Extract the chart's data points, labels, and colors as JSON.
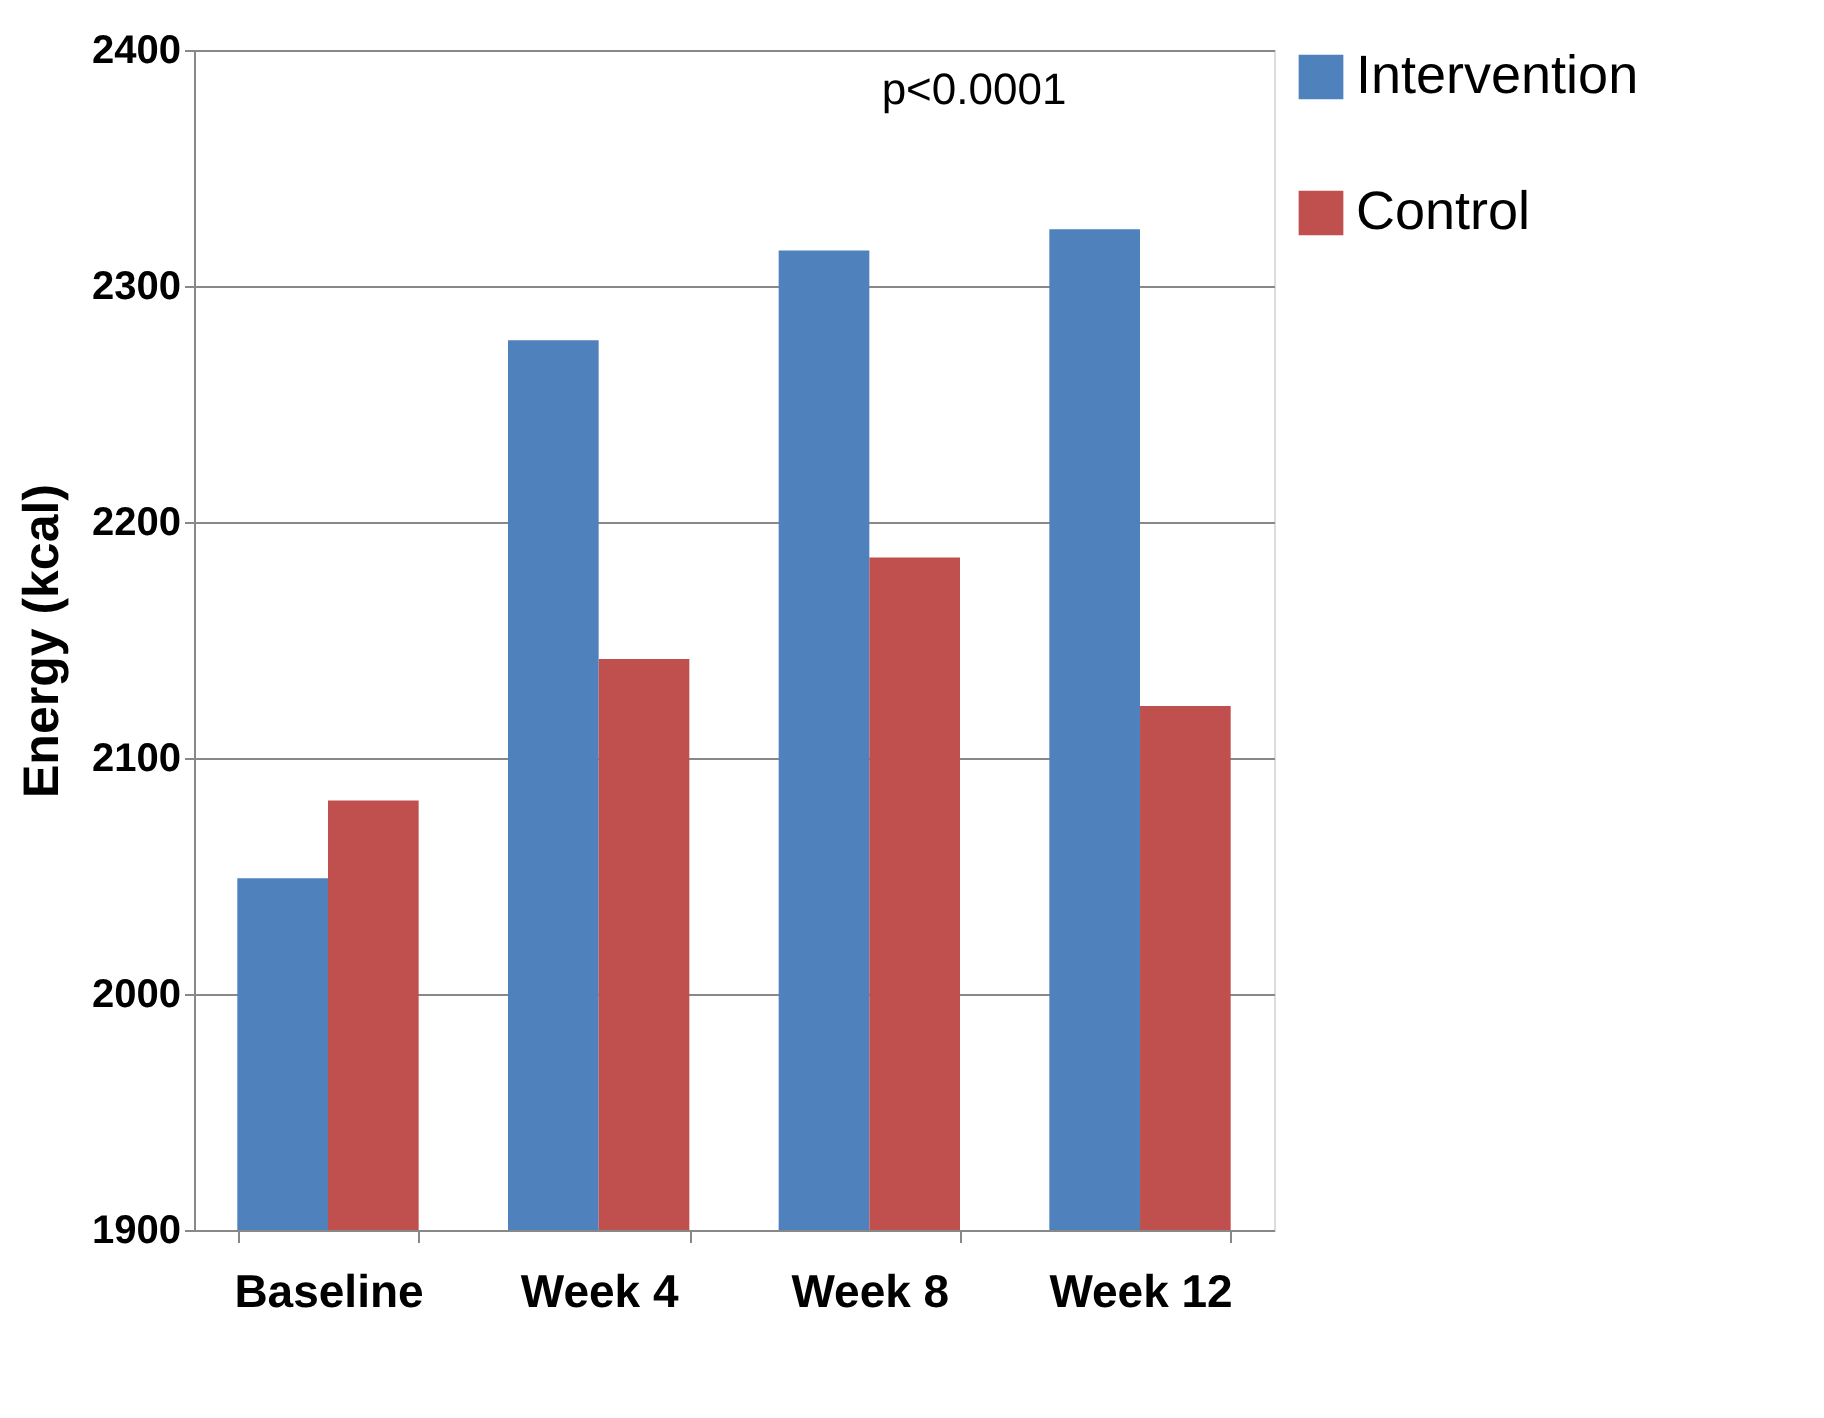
{
  "chart_data": {
    "type": "bar",
    "ylabel": "Energy (kcal)",
    "categories": [
      "Baseline",
      "Week 4",
      "Week 8",
      "Week 12"
    ],
    "series": [
      {
        "name": "Intervention",
        "color": "#4f81bd",
        "values": [
          2049,
          2277,
          2315,
          2324
        ]
      },
      {
        "name": "Control",
        "color": "#c0504d",
        "values": [
          2082,
          2142,
          2185,
          2122
        ]
      }
    ],
    "ylim": [
      1900,
      2400
    ],
    "yticks": [
      1900,
      2000,
      2100,
      2200,
      2300,
      2400
    ],
    "grid": "y",
    "legend": "top right",
    "annotations": [
      "p<0.0001"
    ]
  }
}
